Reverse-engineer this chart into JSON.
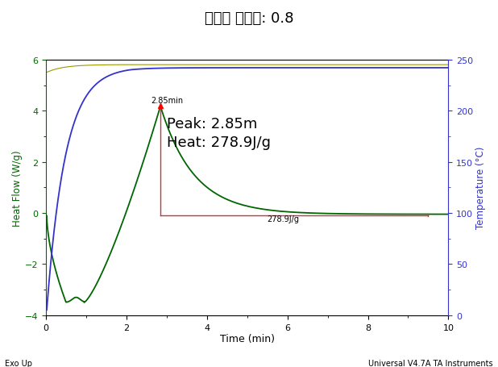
{
  "title": "경화제 당량비: 0.8",
  "xlabel": "Time (min)",
  "ylabel_left": "Heat Flow (W/g)",
  "ylabel_right": "Temperature (°C)",
  "xlim": [
    0,
    10
  ],
  "ylim_left": [
    -4,
    6
  ],
  "ylim_right": [
    0,
    250
  ],
  "left_color": "#006600",
  "right_color": "#3333cc",
  "redline_color": "#cc3333",
  "olive_color": "#999900",
  "peak_x": 2.85,
  "peak_y": 4.2,
  "peak_label": "2.85min",
  "annotation_text": "Peak: 2.85m\nHeat: 278.9J/g",
  "heat_label": "278.9J/g",
  "footer_left": "Exo Up",
  "footer_right": "Universal V4.7A TA Instruments",
  "background_color": "#ffffff",
  "red_hline_y": -0.08,
  "red_hline_x1": 2.85,
  "red_hline_x2": 9.5
}
